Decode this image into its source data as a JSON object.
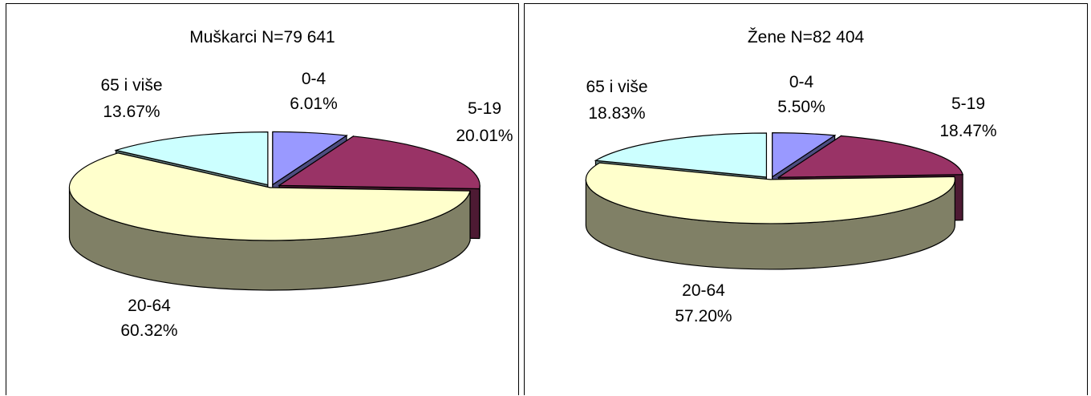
{
  "chart_data": [
    {
      "type": "pie",
      "title": "Muškarci N=79 641",
      "categories": [
        "0-4",
        "5-19",
        "20-64",
        "65 i više"
      ],
      "values": [
        6.01,
        20.01,
        60.32,
        13.67
      ],
      "labels": [
        "6.01%",
        "20.01%",
        "60.32%",
        "13.67%"
      ],
      "colors": [
        "#9999FF",
        "#993366",
        "#FFFFCC",
        "#CCFFFF"
      ],
      "three_d": true,
      "exploded": true
    },
    {
      "type": "pie",
      "title": "Žene N=82 404",
      "categories": [
        "0-4",
        "5-19",
        "20-64",
        "65 i više"
      ],
      "values": [
        5.5,
        18.47,
        57.2,
        18.83
      ],
      "labels": [
        "5.50%",
        "18.47%",
        "57.20%",
        "18.83%"
      ],
      "colors": [
        "#9999FF",
        "#993366",
        "#FFFFCC",
        "#CCFFFF"
      ],
      "three_d": true,
      "exploded": true
    }
  ]
}
